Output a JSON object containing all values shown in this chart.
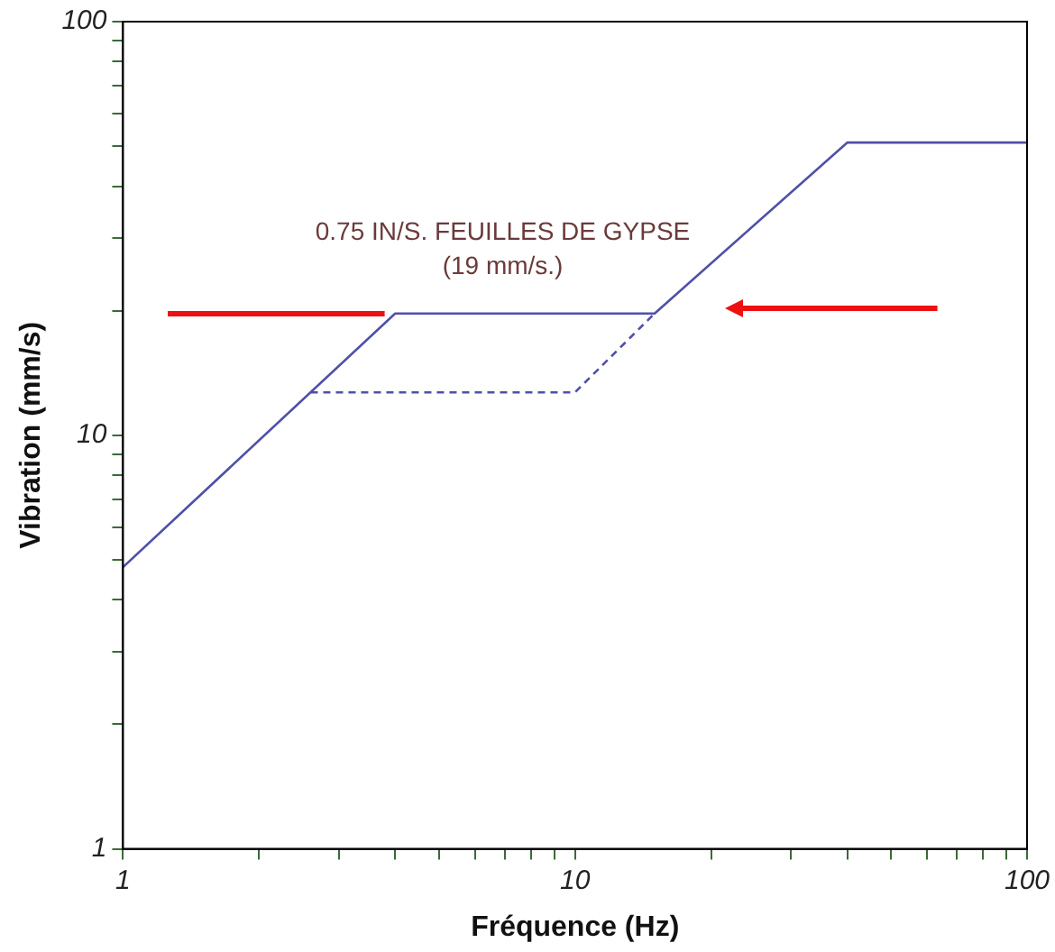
{
  "chart_data": {
    "type": "line",
    "xlabel": "Fréquence (Hz)",
    "ylabel": "Vibration (mm/s)",
    "annotations": [
      "0.75 IN/S. FEUILLES DE GYPSE",
      "(19 mm/s.)"
    ],
    "log": "xy",
    "xlim": [
      1,
      100
    ],
    "ylim": [
      1,
      100
    ],
    "xticks": [
      1,
      {
        "value": 2,
        "label": null
      },
      {
        "value": 3,
        "label": null
      },
      {
        "value": 4,
        "label": null
      },
      {
        "value": 5,
        "label": null
      },
      {
        "value": 6,
        "label": null
      },
      {
        "value": 7,
        "label": null
      },
      {
        "value": 8,
        "label": null
      },
      {
        "value": 9,
        "label": null
      },
      10,
      {
        "value": 20,
        "label": null
      },
      {
        "value": 30,
        "label": null
      },
      {
        "value": 40,
        "label": null
      },
      {
        "value": 50,
        "label": null
      },
      {
        "value": 60,
        "label": null
      },
      {
        "value": 70,
        "label": null
      },
      {
        "value": 80,
        "label": null
      },
      {
        "value": 90,
        "label": null
      },
      100
    ],
    "yticks": [
      1,
      {
        "value": 2,
        "label": null
      },
      {
        "value": 3,
        "label": null
      },
      {
        "value": 4,
        "label": null
      },
      {
        "value": 5,
        "label": null
      },
      {
        "value": 6,
        "label": null
      },
      {
        "value": 7,
        "label": null
      },
      {
        "value": 8,
        "label": null
      },
      {
        "value": 9,
        "label": null
      },
      10,
      {
        "value": 20,
        "label": null
      },
      {
        "value": 30,
        "label": null
      },
      {
        "value": 40,
        "label": null
      },
      {
        "value": 50,
        "label": null
      },
      {
        "value": 60,
        "label": null
      },
      {
        "value": 70,
        "label": null
      },
      {
        "value": 80,
        "label": null
      },
      {
        "value": 90,
        "label": null
      },
      100
    ],
    "grid": false,
    "legend": false,
    "marker": "none",
    "series": [
      {
        "color": "#5050a8",
        "x": [
          1,
          4,
          15,
          40,
          100
        ],
        "values": [
          4.8,
          19.7,
          19.7,
          51,
          51
        ],
        "line_style": "solid"
      },
      {
        "color": "#5050a8",
        "x": [
          2.6,
          10,
          15
        ],
        "values": [
          12.7,
          12.7,
          19.7
        ],
        "line_style": "dashed"
      }
    ]
  }
}
